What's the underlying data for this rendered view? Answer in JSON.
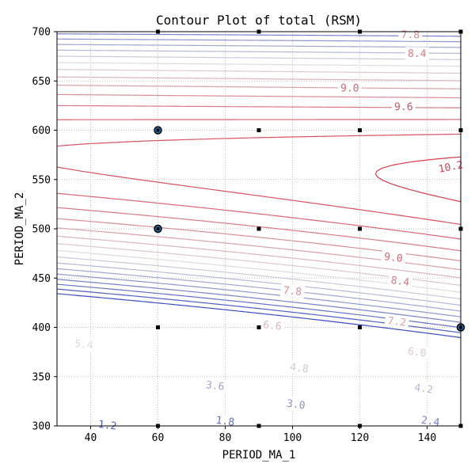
{
  "chart_data": {
    "type": "contour",
    "title": "Contour Plot of total (RSM)",
    "xlabel": "PERIOD_MA_1",
    "ylabel": "PERIOD_MA_2",
    "xlim": [
      30,
      150
    ],
    "ylim": [
      300,
      700
    ],
    "grid": true,
    "x_ticks": [
      40,
      60,
      80,
      100,
      120,
      140
    ],
    "y_ticks": [
      300,
      350,
      400,
      450,
      500,
      550,
      600,
      650,
      700
    ],
    "levels": [
      0.6,
      1.2,
      1.8,
      2.4,
      3.0,
      3.6,
      4.2,
      4.8,
      5.4,
      6.0,
      6.6,
      7.2,
      7.8,
      8.4,
      9.0,
      9.6,
      10.2
    ],
    "colors": {
      "low": "#3b4cc0",
      "mid": "#dddddd",
      "high": "#d53e4f",
      "grid": "#b0b0b0",
      "point": "#000000",
      "highlight_face": "#1f77b4"
    },
    "contour_labels": [
      {
        "text": "1.2",
        "x": 45,
        "y": 301
      },
      {
        "text": "1.8",
        "x": 80,
        "y": 305
      },
      {
        "text": "2.4",
        "x": 141,
        "y": 305
      },
      {
        "text": "3.0",
        "x": 101,
        "y": 322
      },
      {
        "text": "3.6",
        "x": 77,
        "y": 341
      },
      {
        "text": "4.2",
        "x": 139,
        "y": 338
      },
      {
        "text": "4.8",
        "x": 102,
        "y": 359
      },
      {
        "text": "5.4",
        "x": 38,
        "y": 383
      },
      {
        "text": "6.0",
        "x": 137,
        "y": 375
      },
      {
        "text": "6.6",
        "x": 94,
        "y": 402
      },
      {
        "text": "7.2",
        "x": 131,
        "y": 406
      },
      {
        "text": "7.8",
        "x": 100,
        "y": 437
      },
      {
        "text": "8.4",
        "x": 132,
        "y": 447
      },
      {
        "text": "9.0",
        "x": 130,
        "y": 471
      },
      {
        "text": "10.2",
        "x": 147,
        "y": 563
      },
      {
        "text": "9.6",
        "x": 133,
        "y": 624
      },
      {
        "text": "9.0",
        "x": 117,
        "y": 643
      },
      {
        "text": "8.4",
        "x": 137,
        "y": 678
      },
      {
        "text": "7.8",
        "x": 135,
        "y": 697
      }
    ],
    "design_points": [
      [
        60,
        300
      ],
      [
        90,
        300
      ],
      [
        120,
        300
      ],
      [
        150,
        300
      ],
      [
        60,
        400
      ],
      [
        90,
        400
      ],
      [
        120,
        400
      ],
      [
        90,
        500
      ],
      [
        120,
        500
      ],
      [
        150,
        500
      ],
      [
        90,
        600
      ],
      [
        120,
        600
      ],
      [
        150,
        600
      ],
      [
        60,
        700
      ],
      [
        90,
        700
      ],
      [
        120,
        700
      ],
      [
        150,
        700
      ]
    ],
    "highlighted_points": [
      [
        60,
        600
      ],
      [
        60,
        500
      ],
      [
        150,
        400
      ]
    ]
  }
}
